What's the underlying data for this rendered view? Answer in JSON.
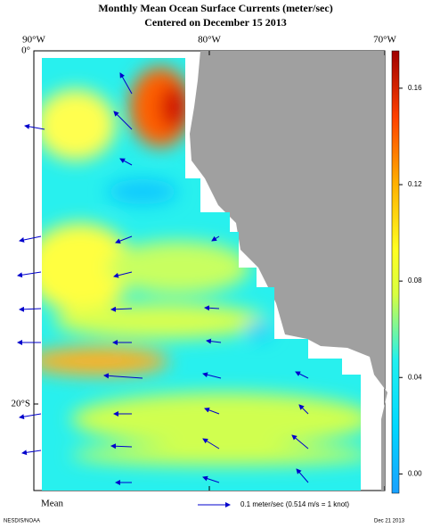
{
  "header": {
    "title": "Monthly Mean Ocean Surface Currents (meter/sec)",
    "subtitle": "Centered on December 15 2013"
  },
  "map": {
    "lonlim": [
      -90,
      -70
    ],
    "latlim": [
      0,
      -24.9
    ],
    "lon_ticks": [
      {
        "value": -90,
        "label": "90°W"
      },
      {
        "value": -80,
        "label": "80°W"
      },
      {
        "value": -70,
        "label": "70°W"
      }
    ],
    "lat_ticks": [
      {
        "value": 0,
        "label": "0°"
      },
      {
        "value": -20,
        "label": "20°S"
      }
    ]
  },
  "colorbar": {
    "lim": [
      -0.008,
      0.1755
    ],
    "ticks": [
      {
        "value": 0,
        "label": "0.00"
      },
      0.04,
      0.08,
      0.12,
      0.16
    ]
  },
  "footer": {
    "statistic": "Mean",
    "reference": "0.1 meter/sec  (0.514 m/s = 1 knot)",
    "credit": "NESDIS/NOAA",
    "date": "Dec 21 2013"
  }
}
